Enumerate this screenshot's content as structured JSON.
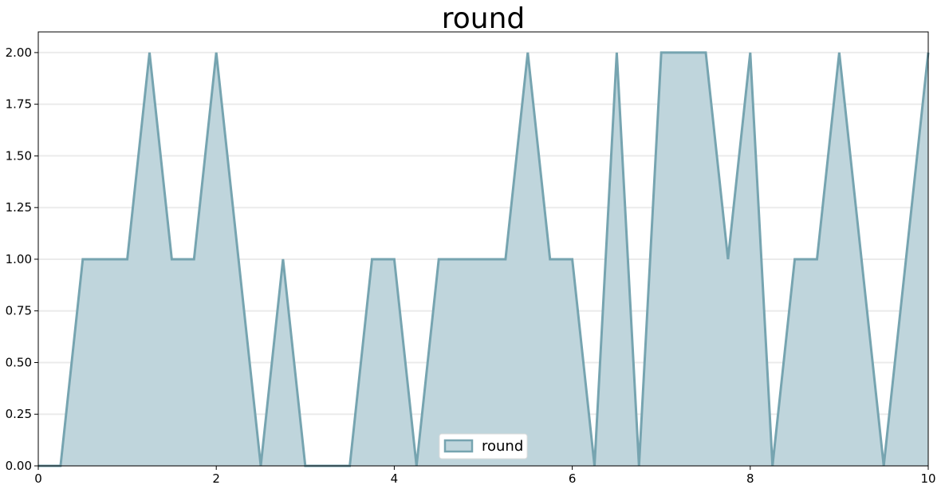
{
  "chart_data": {
    "type": "area",
    "title": "round",
    "xlabel": "",
    "ylabel": "",
    "xlim": [
      0,
      10
    ],
    "ylim": [
      0,
      2.1
    ],
    "x_ticks": [
      0,
      2,
      4,
      6,
      8,
      10
    ],
    "x_tick_labels": [
      "0",
      "2",
      "4",
      "6",
      "8",
      "10"
    ],
    "y_ticks": [
      0,
      0.25,
      0.5,
      0.75,
      1.0,
      1.25,
      1.5,
      1.75,
      2.0
    ],
    "y_tick_labels": [
      "0.00",
      "0.25",
      "0.50",
      "0.75",
      "1.00",
      "1.25",
      "1.50",
      "1.75",
      "2.00"
    ],
    "grid": "horizontal",
    "legend_position": "lower-center",
    "series": [
      {
        "name": "round",
        "line_color": "#76a4b0",
        "fill_color": "#bfd5dc",
        "x": [
          0,
          0.25,
          0.5,
          0.75,
          1.0,
          1.25,
          1.5,
          1.75,
          2.0,
          2.25,
          2.5,
          2.75,
          3.0,
          3.25,
          3.5,
          3.75,
          4.0,
          4.25,
          4.5,
          4.75,
          5.0,
          5.25,
          5.5,
          5.75,
          6.0,
          6.25,
          6.5,
          6.75,
          7.0,
          7.25,
          7.5,
          7.75,
          8.0,
          8.25,
          8.5,
          8.75,
          9.0,
          9.25,
          9.5,
          9.75,
          10.0
        ],
        "values": [
          0,
          0,
          1,
          1,
          1,
          2,
          1,
          1,
          2,
          1,
          0,
          1,
          0,
          0,
          0,
          1,
          1,
          0,
          1,
          1,
          1,
          1,
          2,
          1,
          1,
          0,
          2,
          0,
          2,
          2,
          2,
          1,
          2,
          0,
          1,
          1,
          2,
          1,
          0,
          1,
          2
        ]
      }
    ]
  }
}
